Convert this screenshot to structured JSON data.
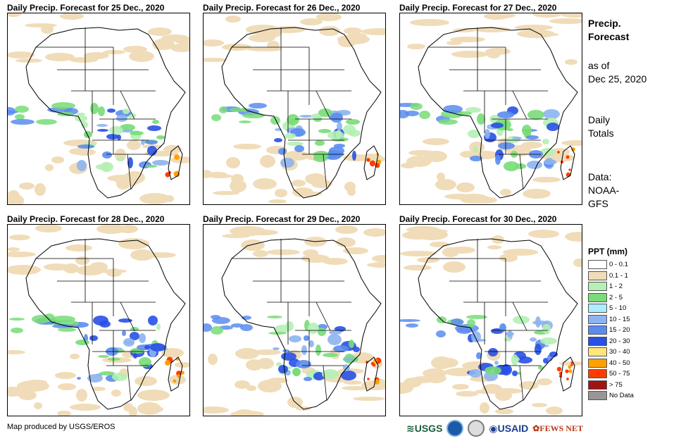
{
  "panels": [
    {
      "title": "Daily Precip. Forecast for 25 Dec., 2020"
    },
    {
      "title": "Daily Precip. Forecast for 26 Dec., 2020"
    },
    {
      "title": "Daily Precip. Forecast for 27 Dec., 2020"
    },
    {
      "title": "Daily Precip. Forecast for 28 Dec., 2020"
    },
    {
      "title": "Daily Precip. Forecast for 29 Dec., 2020"
    },
    {
      "title": "Daily Precip. Forecast for 30 Dec., 2020"
    }
  ],
  "side": {
    "title_line1": "Precip.",
    "title_line2": "Forecast",
    "asof_line1": "as of",
    "asof_line2": "Dec 25, 2020",
    "totals_line1": "Daily",
    "totals_line2": "Totals",
    "data_line1": "Data:",
    "data_line2": "NOAA-",
    "data_line3": "GFS"
  },
  "legend": {
    "title": "PPT (mm)",
    "items": [
      {
        "label": "0 - 0.1",
        "color": "#ffffff"
      },
      {
        "label": "0.1 - 1",
        "color": "#f0dcb8"
      },
      {
        "label": "1 - 2",
        "color": "#b4f0b4"
      },
      {
        "label": "2 - 5",
        "color": "#78dc78"
      },
      {
        "label": "5 - 10",
        "color": "#aaeeff"
      },
      {
        "label": "10 - 15",
        "color": "#8cb4f0"
      },
      {
        "label": "15 - 20",
        "color": "#5a8cf0"
      },
      {
        "label": "20 - 30",
        "color": "#2850e6"
      },
      {
        "label": "30 - 40",
        "color": "#ffe678"
      },
      {
        "label": "40 - 50",
        "color": "#ffa000"
      },
      {
        "label": "50 - 75",
        "color": "#ff3c00"
      },
      {
        "label": "> 75",
        "color": "#a01414"
      },
      {
        "label": "No Data",
        "color": "#969696"
      }
    ]
  },
  "footer": {
    "credit": "Map produced by USGS/EROS"
  },
  "logos": {
    "usgs": "USGS",
    "usaid": "USAID",
    "fewsnet": "FEWS NET"
  }
}
